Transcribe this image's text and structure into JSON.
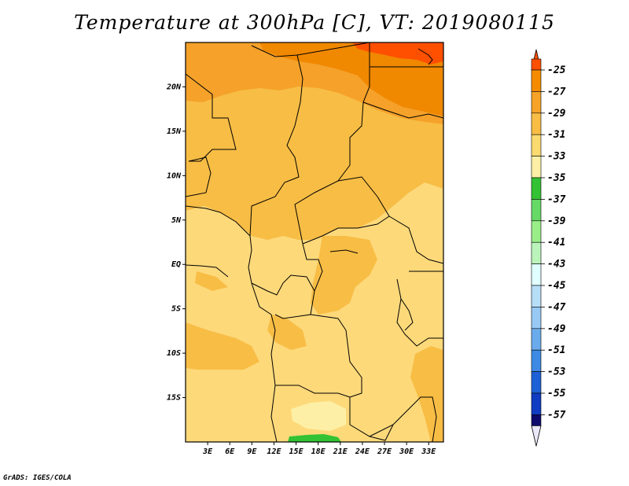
{
  "title": "Temperature at 300hPa [C], VT: 2019080115",
  "credit": "GrADS: IGES/COLA",
  "map": {
    "lon_range": [
      0,
      35
    ],
    "lat_range": [
      -20,
      25
    ],
    "lon_ticks": [
      "3E",
      "6E",
      "9E",
      "12E",
      "15E",
      "18E",
      "21E",
      "24E",
      "27E",
      "30E",
      "33E"
    ],
    "lat_ticks": [
      "20N",
      "15N",
      "10N",
      "5N",
      "EQ",
      "5S",
      "10S",
      "15S"
    ]
  },
  "legend": {
    "labels": [
      "-25",
      "-27",
      "-29",
      "-31",
      "-33",
      "-35",
      "-37",
      "-39",
      "-41",
      "-43",
      "-45",
      "-47",
      "-49",
      "-51",
      "-53",
      "-55",
      "-57"
    ],
    "colors": [
      "#ff5000",
      "#f58c00",
      "#f7a328",
      "#f8bd45",
      "#fbda70",
      "#fdf0a6",
      "#33c233",
      "#66d966",
      "#99ee88",
      "#bbf4bb",
      "#e0ffff",
      "#b7def7",
      "#98c9f4",
      "#6aabec",
      "#3d8ae4",
      "#1e61d6",
      "#0f3cc2",
      "#0a16a0",
      "#0d0a6d",
      "#e8e8f8"
    ]
  },
  "colors": {
    "bg": "#fdd97a",
    "band_31": "#f8bd45",
    "band_29": "#f5a12a",
    "band_27": "#f08800",
    "band_25": "#ff5000",
    "band_35": "#fdf0a6",
    "band_37": "#33c233"
  }
}
